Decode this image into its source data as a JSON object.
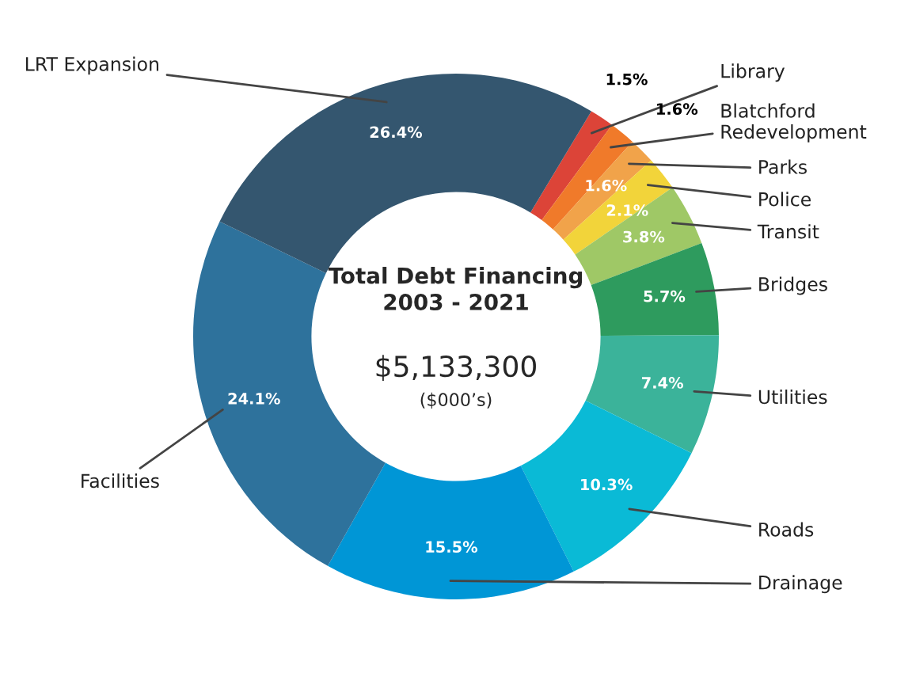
{
  "chart_data": {
    "type": "donut",
    "title": "Total Debt Financing\n2003 - 2021",
    "annotations": [
      "$5,133,300",
      "($000’s)"
    ],
    "categories": [
      "Library",
      "Blatchford\nRedevelopment",
      "Parks",
      "Police",
      "Transit",
      "Bridges",
      "Utilities",
      "Roads",
      "Drainage",
      "Facilities",
      "LRT Expansion"
    ],
    "values": [
      1.5,
      1.6,
      1.6,
      2.1,
      3.8,
      5.7,
      7.4,
      10.3,
      15.5,
      24.1,
      26.4
    ],
    "value_labels": [
      "1.5%",
      "1.6%",
      "1.6%",
      "2.1%",
      "3.8%",
      "5.7%",
      "7.4%",
      "10.3%",
      "15.5%",
      "24.1%",
      "26.4%"
    ],
    "colors": [
      "#dc4438",
      "#f07a2a",
      "#f1a34a",
      "#f2d43a",
      "#9fc866",
      "#2e9b5e",
      "#3bb39a",
      "#0abad6",
      "#0096d6",
      "#2e729c",
      "#34566f"
    ]
  }
}
